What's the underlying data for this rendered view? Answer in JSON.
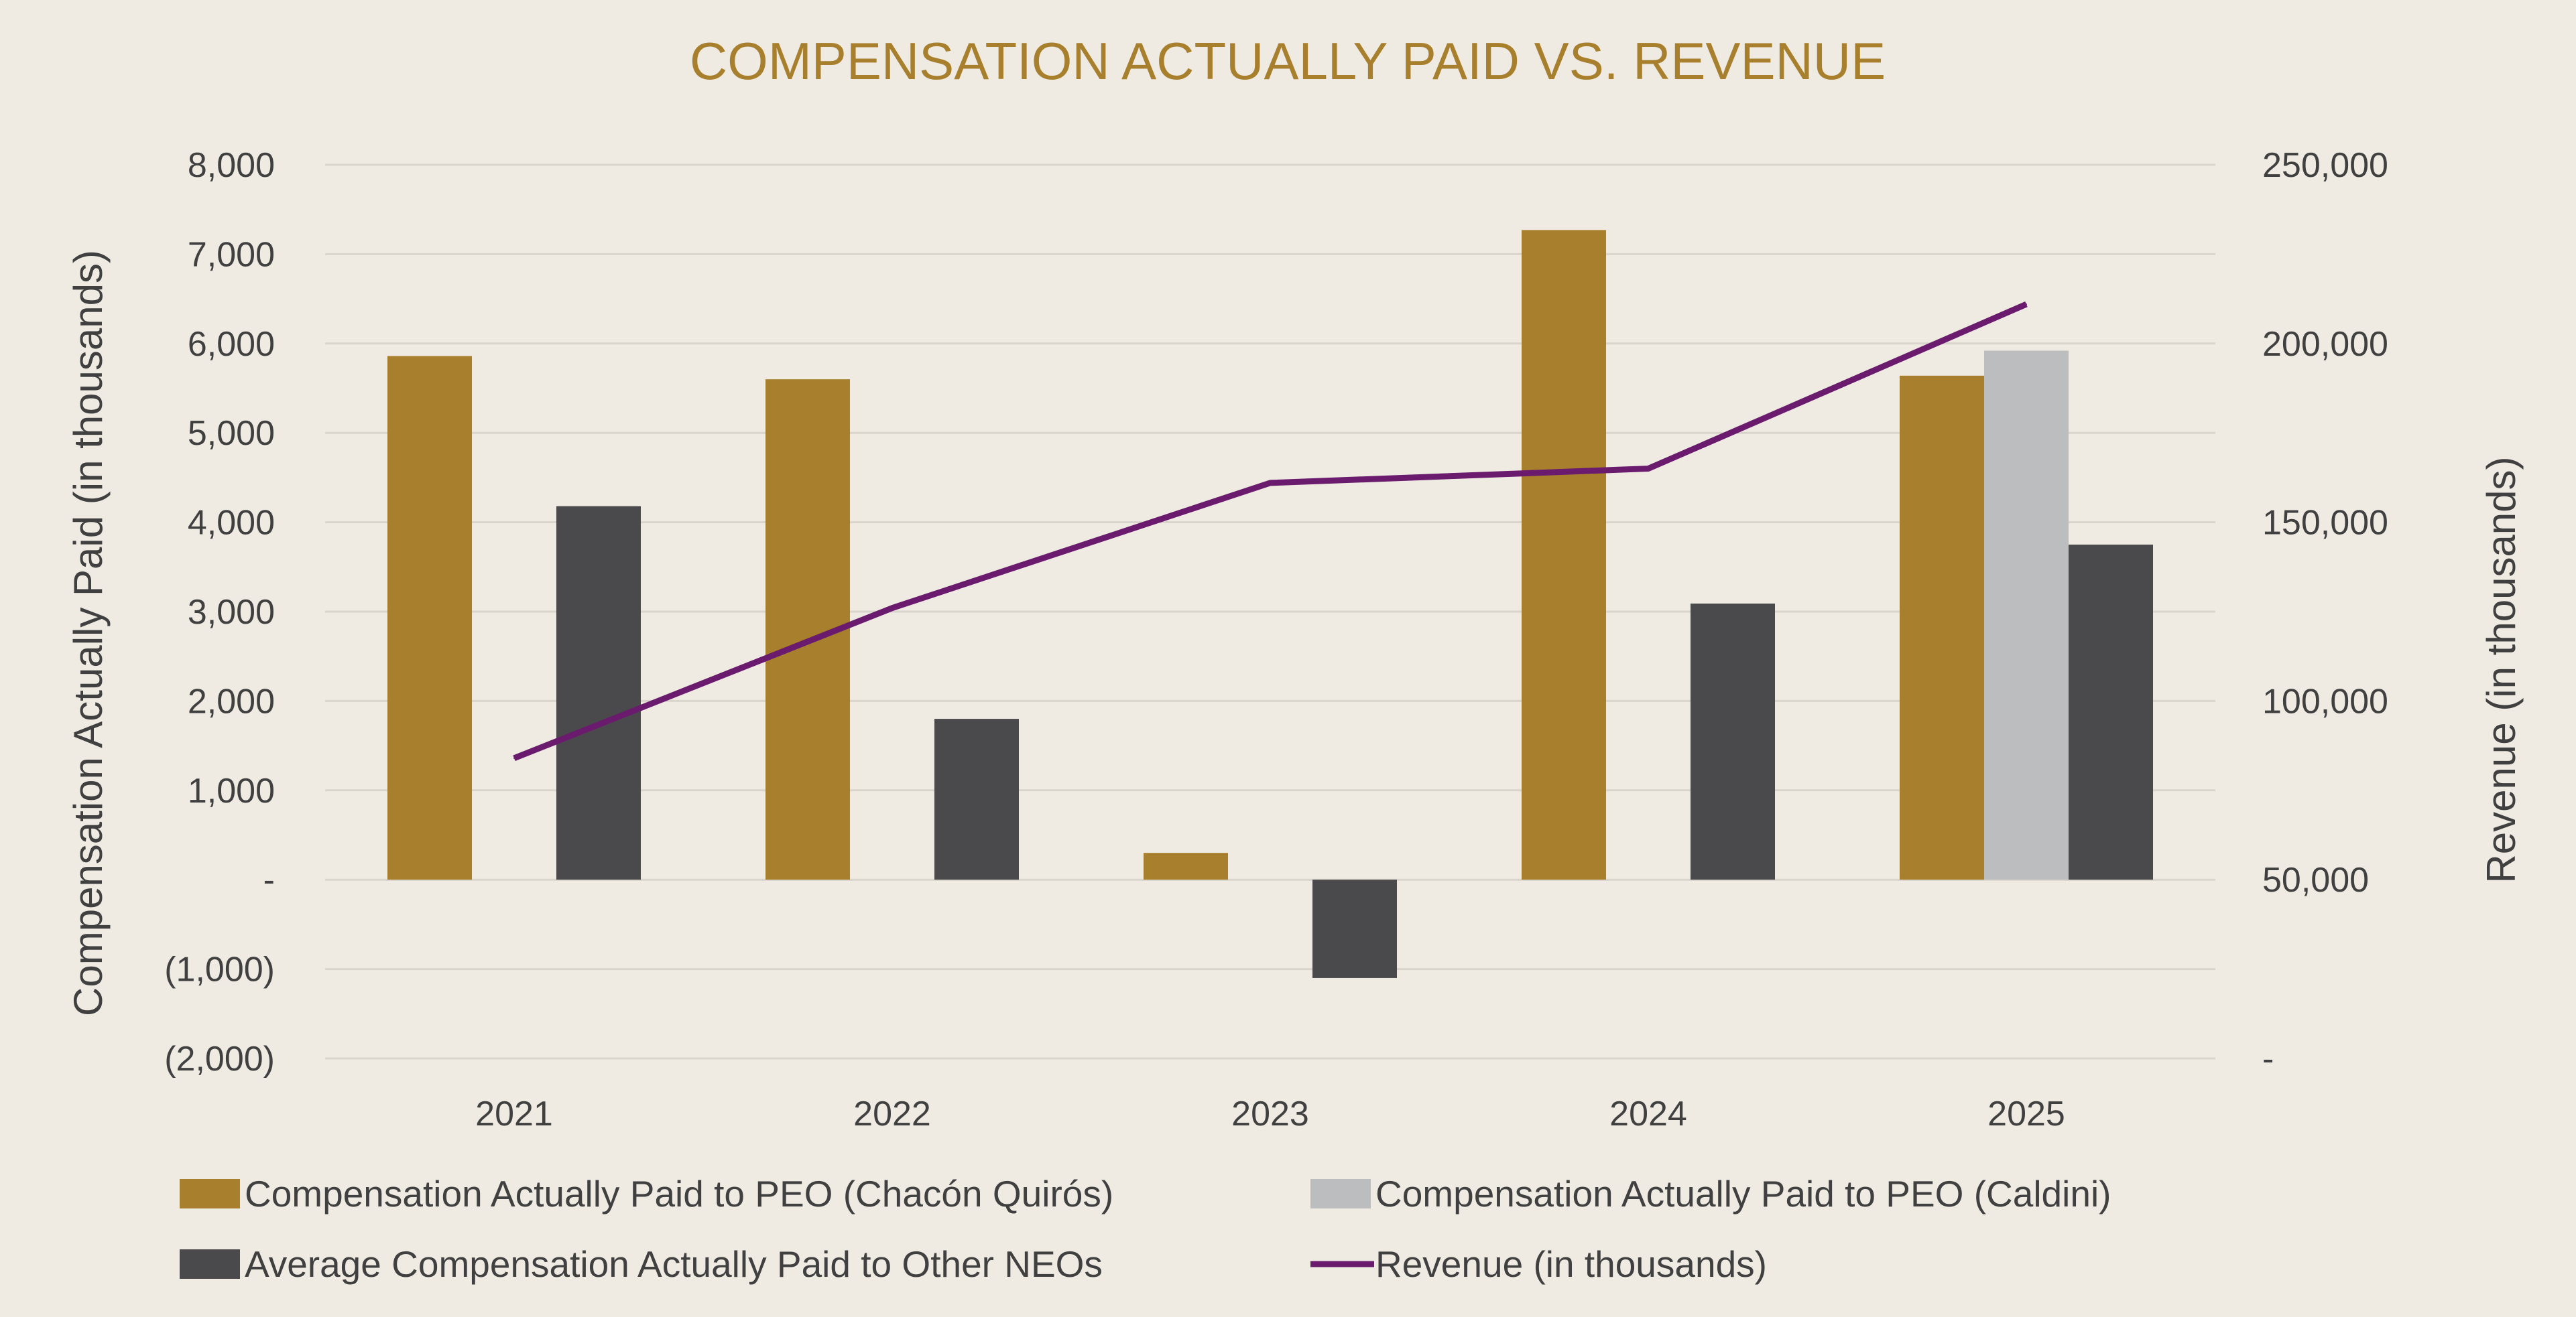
{
  "chart_data": {
    "type": "bar",
    "title": "COMPENSATION ACTUALLY PAID VS. REVENUE",
    "categories": [
      "2021",
      "2022",
      "2023",
      "2024",
      "2025"
    ],
    "ylabel": "Compensation Actually Paid (in thousands)",
    "y2label": "Revenue (in thousands)",
    "ylim": [
      -2000,
      8000
    ],
    "y2lim": [
      0,
      250000
    ],
    "yticks": [
      8000,
      7000,
      6000,
      5000,
      4000,
      3000,
      2000,
      1000,
      0,
      -1000,
      -2000
    ],
    "ytick_labels": [
      "8,000",
      "7,000",
      "6,000",
      "5,000",
      "4,000",
      "3,000",
      "2,000",
      "1,000",
      "-",
      "(1,000)",
      "(2,000)"
    ],
    "y2ticks": [
      250000,
      200000,
      150000,
      100000,
      50000,
      0
    ],
    "y2tick_labels": [
      "250,000",
      "200,000",
      "150,000",
      "100,000",
      "50,000",
      "-"
    ],
    "grid": true,
    "legend_position": "bottom",
    "series": [
      {
        "name": "Compensation Actually Paid to PEO (Chacón Quirós)",
        "kind": "bar",
        "axis": "left",
        "color": "#a8802d",
        "values": [
          5860,
          5600,
          300,
          7270,
          5640
        ]
      },
      {
        "name": "Compensation Actually Paid to PEO (Caldini)",
        "kind": "bar",
        "axis": "left",
        "color": "#bcbdbf",
        "values": [
          null,
          null,
          null,
          null,
          5920
        ]
      },
      {
        "name": "Average Compensation Actually Paid to Other NEOs",
        "kind": "bar",
        "axis": "left",
        "color": "#4a4a4c",
        "values": [
          4180,
          1800,
          -1100,
          3090,
          3750
        ]
      },
      {
        "name": "Revenue (in thousands)",
        "kind": "line",
        "axis": "right",
        "color": "#6a1b6e",
        "values": [
          84000,
          126000,
          161000,
          165000,
          211000
        ]
      }
    ],
    "legend_order": [
      0,
      1,
      2,
      3
    ],
    "colors": {
      "title": "#a8802d",
      "text": "#404040",
      "grid": "#d9d5cc",
      "background": "#efebe3"
    }
  }
}
